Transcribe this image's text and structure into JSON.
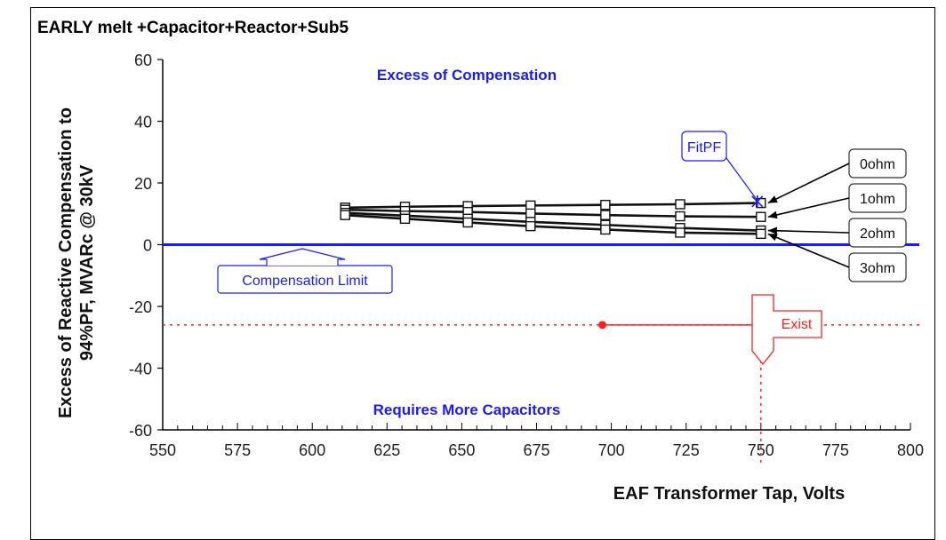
{
  "chart_data": {
    "type": "line",
    "title": "EARLY melt +Capacitor+Reactor+Sub5",
    "xlabel": "EAF Transformer Tap, Volts",
    "ylabel_line1": "Excess of Reactive Compensation to",
    "ylabel_line2": "94%PF, MVARc @ 30kV",
    "xlim": [
      550,
      800
    ],
    "ylim": [
      -60,
      60
    ],
    "xticks": [
      "550",
      "575",
      "600",
      "625",
      "650",
      "675",
      "700",
      "725",
      "750",
      "775",
      "800"
    ],
    "yticks": [
      "60",
      "40",
      "20",
      "0",
      "-20",
      "-40",
      "-60"
    ],
    "x": [
      611,
      631,
      652,
      673,
      698,
      723,
      750
    ],
    "series": [
      {
        "name": "0ohm",
        "values": [
          12.0,
          12.3,
          12.5,
          12.7,
          12.9,
          13.1,
          13.5
        ]
      },
      {
        "name": "1ohm",
        "values": [
          11.3,
          10.9,
          10.6,
          10.1,
          9.6,
          9.2,
          9.0
        ]
      },
      {
        "name": "2ohm",
        "values": [
          10.3,
          9.4,
          8.4,
          7.4,
          6.4,
          5.4,
          4.6
        ]
      },
      {
        "name": "3ohm",
        "values": [
          9.6,
          8.4,
          7.2,
          6.0,
          4.9,
          3.9,
          3.5
        ]
      }
    ],
    "compensation_limit": 0,
    "exist": {
      "label": "Exist",
      "x": 750,
      "y": -26,
      "line_start_x": 697
    },
    "fitpf": {
      "label": "FitPF",
      "x": 750,
      "y": 14
    },
    "zone_top": "Excess of Compensation",
    "zone_bottom": "Requires More Capacitors",
    "limit_label": "Compensation Limit",
    "colors": {
      "title": "#3cc6c0",
      "blue": "#1a1aff",
      "red": "#ff2020",
      "series": "#111111"
    }
  }
}
